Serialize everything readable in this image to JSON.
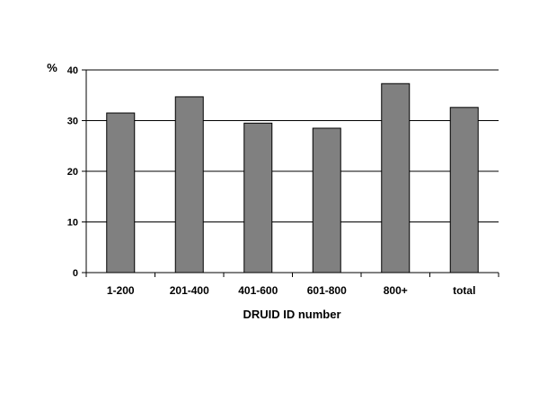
{
  "chart_data": {
    "type": "bar",
    "categories": [
      "1-200",
      "201-400",
      "401-600",
      "601-800",
      "800+",
      "total"
    ],
    "values": [
      31.5,
      34.7,
      29.5,
      28.5,
      37.3,
      32.6
    ],
    "title": "",
    "xlabel": "DRUID ID number",
    "ylabel": "%",
    "ylim": [
      0,
      40
    ],
    "yticks": [
      0,
      10,
      20,
      30,
      40
    ],
    "grid": true,
    "bar_color": "#808080",
    "bar_edge_color": "#000000"
  }
}
